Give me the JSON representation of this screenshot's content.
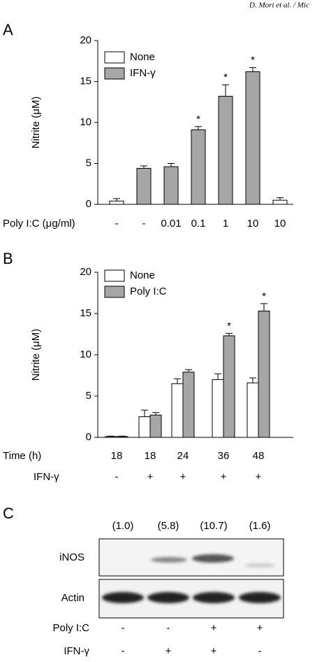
{
  "header": "D. Mori et al. / Mic",
  "chart_data": [
    {
      "type": "bar",
      "panel": "A",
      "ylabel": "Nitrite (μM)",
      "xlabel": "Poly I:C (μg/ml)",
      "categories": [
        "-",
        "-",
        "0.01",
        "0.1",
        "1",
        "10",
        "10"
      ],
      "series": [
        {
          "name": "None",
          "color": "#ffffff",
          "values": [
            0.4,
            null,
            null,
            null,
            null,
            null,
            0.5
          ],
          "errors": [
            0.3,
            null,
            null,
            null,
            null,
            null,
            0.3
          ],
          "labels": [
            null,
            null,
            null,
            null,
            null,
            null,
            null
          ]
        },
        {
          "name": "IFN-γ",
          "color": "#a6a6a6",
          "values": [
            null,
            4.4,
            4.6,
            9.1,
            13.2,
            16.2,
            null
          ],
          "errors": [
            null,
            0.3,
            0.4,
            0.4,
            1.4,
            0.5,
            null
          ],
          "labels": [
            null,
            null,
            null,
            "*",
            "*",
            "*",
            null
          ]
        }
      ],
      "ylim": [
        0,
        20
      ],
      "yticks": [
        0,
        5,
        10,
        15,
        20
      ],
      "legend": "upper left"
    },
    {
      "type": "bar",
      "panel": "B",
      "ylabel": "Nitrite (μM)",
      "xlabel": "Time (h)",
      "categories": [
        "18",
        "18",
        "24",
        "36",
        "48"
      ],
      "extra_row": {
        "label": "IFN-γ",
        "values": [
          "-",
          "+",
          "+",
          "+",
          "+"
        ]
      },
      "series": [
        {
          "name": "None",
          "color": "#ffffff",
          "values": [
            0.1,
            2.5,
            6.5,
            7.0,
            6.6
          ],
          "errors": [
            0.05,
            0.8,
            0.6,
            0.7,
            0.6
          ],
          "labels": [
            null,
            null,
            null,
            null,
            null
          ]
        },
        {
          "name": "Poly I:C",
          "color": "#a6a6a6",
          "values": [
            0.1,
            2.7,
            7.9,
            12.3,
            15.3
          ],
          "errors": [
            0.05,
            0.3,
            0.3,
            0.3,
            0.9
          ],
          "labels": [
            null,
            null,
            null,
            "*",
            "*"
          ]
        }
      ],
      "ylim": [
        0,
        20
      ],
      "yticks": [
        0,
        5,
        10,
        15,
        20
      ],
      "legend": "upper left"
    }
  ],
  "blot": {
    "panel": "C",
    "fold_labels": [
      "(1.0)",
      "(5.8)",
      "(10.7)",
      "(1.6)"
    ],
    "rows": [
      "iNOS",
      "Actin"
    ],
    "conditions": [
      {
        "label": "Poly I:C",
        "values": [
          "-",
          "-",
          "+",
          "+"
        ]
      },
      {
        "label": "IFN-γ",
        "values": [
          "-",
          "+",
          "+",
          "-"
        ]
      }
    ]
  }
}
